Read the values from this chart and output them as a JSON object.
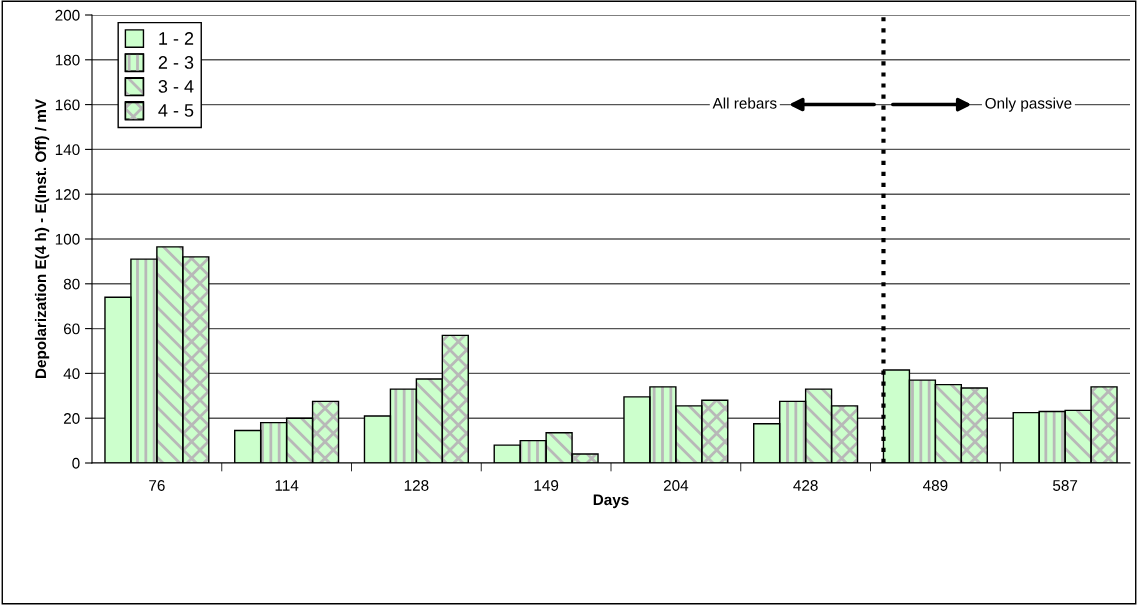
{
  "chart_data": {
    "type": "bar",
    "xlabel": "Days",
    "ylabel": "Depolarization E(4 h) - E(Inst. Off) / mV",
    "categories": [
      "76",
      "114",
      "128",
      "149",
      "204",
      "428",
      "489",
      "587"
    ],
    "series": [
      {
        "name": "1 - 2",
        "color": "#ccffcc",
        "values": [
          74,
          14.5,
          21,
          8,
          29.5,
          17.5,
          41.5,
          22.5
        ]
      },
      {
        "name": "2 - 3",
        "color": "#ccffcc",
        "values": [
          91,
          18,
          33,
          10,
          34,
          27.5,
          37,
          23
        ]
      },
      {
        "name": "3 - 4",
        "color": "#ccffcc",
        "values": [
          96.5,
          20,
          37.5,
          13.5,
          25.5,
          33,
          35,
          23.5
        ]
      },
      {
        "name": "4 - 5",
        "color": "#ccffcc",
        "values": [
          92,
          27.5,
          57,
          4,
          28,
          25.5,
          33.5,
          34
        ]
      }
    ],
    "ylim": [
      0,
      200
    ],
    "yticks": [
      0,
      20,
      40,
      60,
      80,
      100,
      120,
      140,
      160,
      180,
      200
    ],
    "grid": "y",
    "legend": "top left",
    "ref_lines": [
      {
        "axis": "x",
        "value": "489",
        "color": "#000000",
        "line_style": "dotted"
      }
    ],
    "annotations": [
      "All rebars",
      "Only passive"
    ]
  }
}
